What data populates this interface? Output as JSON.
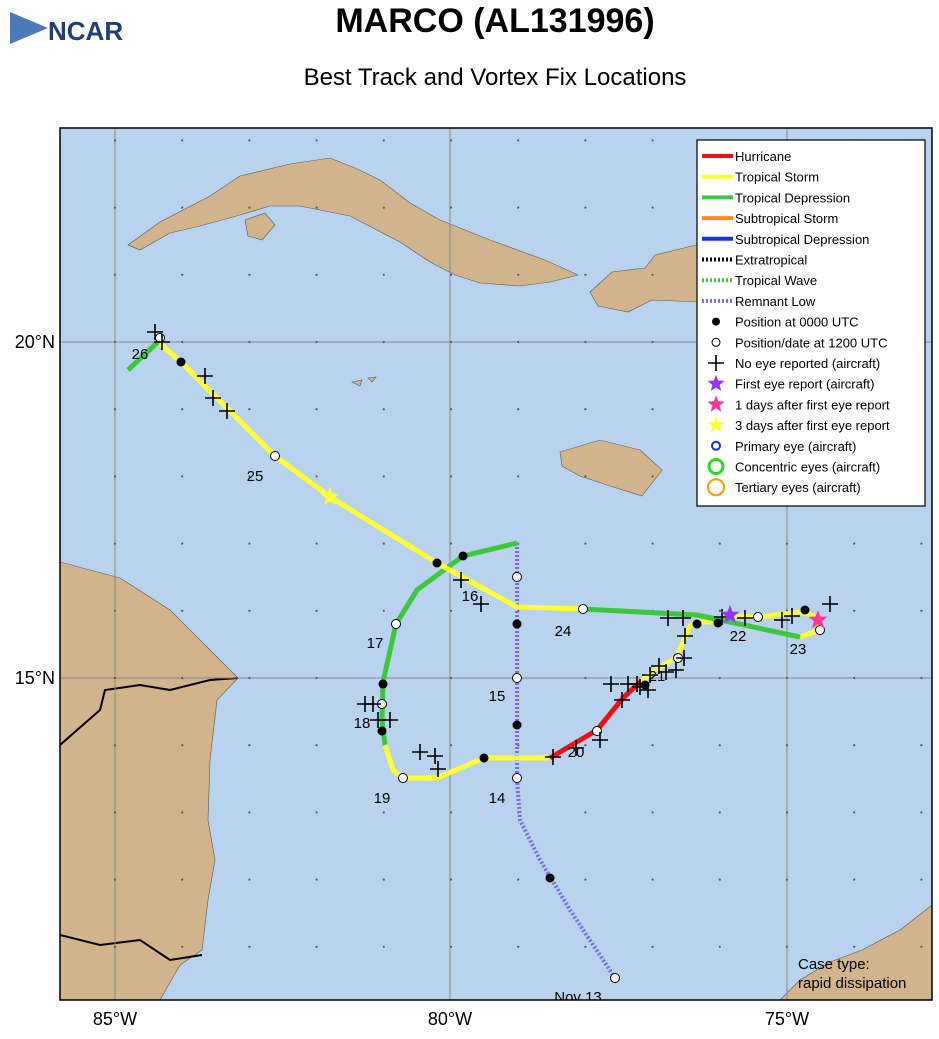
{
  "header": {
    "logo": "NCAR",
    "title": "MARCO (AL131996)",
    "subtitle": "Best Track and Vortex Fix Locations"
  },
  "legend": [
    "Hurricane",
    "Tropical Storm",
    "Tropical Depression",
    "Subtropical Storm",
    "Subtropical Depression",
    "Extratropical",
    "Tropical Wave",
    "Remnant Low",
    "Position at 0000 UTC",
    "Position/date at 1200 UTC",
    "No eye reported (aircraft)",
    "First eye report (aircraft)",
    "1 days after first eye report",
    "3 days after first eye report",
    "Primary eye (aircraft)",
    "Concentric eyes (aircraft)",
    "Tertiary eyes (aircraft)"
  ],
  "axes": {
    "lon_labels": [
      "85°W",
      "80°W",
      "75°W"
    ],
    "lat_labels": [
      "20°N",
      "15°N"
    ]
  },
  "date_labels": [
    "26",
    "25",
    "16",
    "17",
    "24",
    "22",
    "23",
    "15",
    "18",
    "19",
    "14",
    "20",
    "21",
    "Nov 13"
  ],
  "case_type": [
    "Case type:",
    "rapid dissipation"
  ]
}
